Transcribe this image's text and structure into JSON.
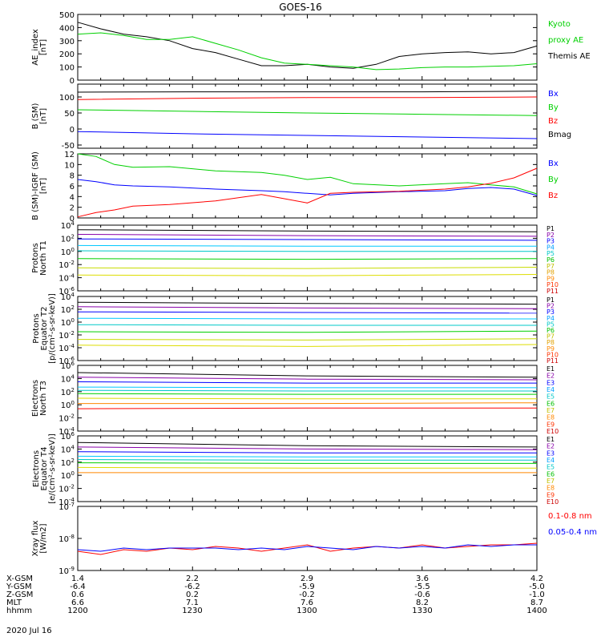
{
  "title": "GOES-16",
  "date": "2020 Jul 16",
  "x_axis": {
    "ticks": [
      "1200",
      "1230",
      "1300",
      "1330",
      "1400"
    ],
    "rows": [
      {
        "label": "X-GSM",
        "values": [
          "1.4",
          "2.2",
          "2.9",
          "3.6",
          "4.2"
        ]
      },
      {
        "label": "Y-GSM",
        "values": [
          "-6.4",
          "-6.2",
          "-5.9",
          "-5.5",
          "-5.0"
        ]
      },
      {
        "label": "Z-GSM",
        "values": [
          "0.6",
          "0.2",
          "-0.2",
          "-0.6",
          "-1.0"
        ]
      },
      {
        "label": "MLT",
        "values": [
          "6.6",
          "7.1",
          "7.6",
          "8.2",
          "8.7"
        ]
      },
      {
        "label": "hhmm",
        "values": [
          "1200",
          "1230",
          "1300",
          "1330",
          "1400"
        ]
      }
    ]
  },
  "colors": {
    "black": "#000000",
    "red": "#ff0000",
    "green": "#00d000",
    "blue": "#0000ff",
    "yellow": "#dddd00",
    "cyan": "#00c8ff",
    "purple": "#8800aa",
    "orange": "#ff8800"
  },
  "chart_data": [
    {
      "type": "line",
      "id": "ae",
      "ylabel": [
        "AE_index",
        "[nT]"
      ],
      "ylim": [
        0,
        500
      ],
      "yscale": "linear",
      "yticks": [
        "0",
        "100",
        "200",
        "300",
        "400",
        "500"
      ],
      "ytick_values": [
        0,
        100,
        200,
        300,
        400,
        500
      ],
      "x": [
        0,
        0.05,
        0.1,
        0.15,
        0.2,
        0.25,
        0.3,
        0.35,
        0.4,
        0.45,
        0.5,
        0.55,
        0.6,
        0.65,
        0.7,
        0.75,
        0.8,
        0.85,
        0.9,
        0.95,
        1.0
      ],
      "series": [
        {
          "name": "Themis AE",
          "color": "#000000",
          "values": [
            440,
            390,
            350,
            330,
            300,
            240,
            210,
            160,
            110,
            110,
            120,
            100,
            90,
            120,
            180,
            200,
            210,
            215,
            200,
            210,
            260
          ]
        },
        {
          "name": "Kyoto proxy AE",
          "color": "#00d000",
          "values": [
            350,
            360,
            340,
            310,
            310,
            330,
            280,
            230,
            170,
            130,
            120,
            110,
            100,
            80,
            85,
            95,
            100,
            100,
            105,
            110,
            125
          ]
        }
      ],
      "legend": [
        {
          "text": "Kyoto",
          "color": "#00d000"
        },
        {
          "text": "proxy AE",
          "color": "#00d000"
        },
        {
          "text": "Themis AE",
          "color": "#000000"
        }
      ]
    },
    {
      "type": "line",
      "id": "b_sm",
      "ylabel": [
        "B (SM)",
        "[nT]"
      ],
      "ylim": [
        -60,
        140
      ],
      "yscale": "linear",
      "yticks": [
        "-50",
        "0",
        "50",
        "100"
      ],
      "ytick_values": [
        -50,
        0,
        50,
        100
      ],
      "x": [
        0,
        0.25,
        0.5,
        0.75,
        1.0
      ],
      "series": [
        {
          "name": "Bmag",
          "color": "#000000",
          "values": [
            115,
            116,
            116,
            116,
            118
          ]
        },
        {
          "name": "Bz",
          "color": "#ff0000",
          "values": [
            92,
            96,
            98,
            98,
            100
          ]
        },
        {
          "name": "By",
          "color": "#00d000",
          "values": [
            60,
            55,
            50,
            46,
            42
          ]
        },
        {
          "name": "Bx",
          "color": "#0000ff",
          "values": [
            -8,
            -15,
            -20,
            -25,
            -30
          ]
        }
      ],
      "legend": [
        {
          "text": "Bx",
          "color": "#0000ff"
        },
        {
          "text": "By",
          "color": "#00d000"
        },
        {
          "text": "Bz",
          "color": "#ff0000"
        },
        {
          "text": "Bmag",
          "color": "#000000"
        }
      ]
    },
    {
      "type": "line",
      "id": "b_igrf",
      "ylabel": [
        "B (SM)-IGRF (SM)",
        "[nT]"
      ],
      "ylim": [
        0,
        12
      ],
      "yscale": "linear",
      "yticks": [
        "0",
        "2",
        "4",
        "6",
        "8",
        "10",
        "12"
      ],
      "ytick_values": [
        0,
        2,
        4,
        6,
        8,
        10,
        12
      ],
      "x": [
        0,
        0.04,
        0.08,
        0.12,
        0.2,
        0.3,
        0.4,
        0.45,
        0.5,
        0.55,
        0.6,
        0.7,
        0.8,
        0.85,
        0.9,
        0.95,
        1.0
      ],
      "series": [
        {
          "name": "By",
          "color": "#00d000",
          "values": [
            12.2,
            11.5,
            10,
            9.5,
            9.6,
            8.8,
            8.5,
            8.0,
            7.2,
            7.6,
            6.4,
            6.0,
            6.4,
            6.6,
            6.2,
            5.8,
            4.5
          ]
        },
        {
          "name": "Bx",
          "color": "#0000ff",
          "values": [
            7.2,
            6.8,
            6.2,
            6.0,
            5.8,
            5.4,
            5.1,
            4.9,
            4.6,
            4.3,
            4.6,
            4.9,
            5.1,
            5.5,
            5.7,
            5.4,
            4.2
          ]
        },
        {
          "name": "Bz",
          "color": "#ff0000",
          "values": [
            0.2,
            1.0,
            1.5,
            2.2,
            2.5,
            3.2,
            4.4,
            3.6,
            2.8,
            4.6,
            4.8,
            5.0,
            5.4,
            5.8,
            6.5,
            7.5,
            9.3
          ]
        }
      ],
      "legend": [
        {
          "text": "Bx",
          "color": "#0000ff"
        },
        {
          "text": "By",
          "color": "#00d000"
        },
        {
          "text": "Bz",
          "color": "#ff0000"
        }
      ]
    },
    {
      "type": "line",
      "id": "protons_t1",
      "ylabel": [
        "Protons",
        "North T1"
      ],
      "ylim": [
        -6,
        4
      ],
      "yscale": "log10",
      "yticks": [
        "10^-6",
        "10^-4",
        "10^-2",
        "10^0",
        "10^2",
        "10^4"
      ],
      "ytick_values": [
        -6,
        -4,
        -2,
        0,
        2,
        4
      ],
      "x": [
        0,
        0.5,
        1.0
      ],
      "series": [
        {
          "name": "P1",
          "color": "#000000",
          "values": [
            3.3,
            3.1,
            3.0
          ]
        },
        {
          "name": "P2",
          "color": "#8800aa",
          "values": [
            2.6,
            2.4,
            2.3
          ]
        },
        {
          "name": "P3",
          "color": "#0000ff",
          "values": [
            1.9,
            1.8,
            1.7
          ]
        },
        {
          "name": "P4",
          "color": "#00c8ff",
          "values": [
            0.9,
            0.8,
            0.8
          ]
        },
        {
          "name": "P5",
          "color": "#00c8c8",
          "values": [
            0.1,
            0.0,
            0.0
          ]
        },
        {
          "name": "P6",
          "color": "#00d000",
          "values": [
            -1.1,
            -1.2,
            -1.1
          ]
        },
        {
          "name": "P7",
          "color": "#c8dc00",
          "values": [
            -2.5,
            -2.6,
            -2.4
          ]
        },
        {
          "name": "P8",
          "color": "#dddd00",
          "values": [
            -3.6,
            -3.7,
            -3.5
          ]
        }
      ],
      "legend": [
        {
          "text": "P1",
          "color": "#000000"
        },
        {
          "text": "P2",
          "color": "#8800aa"
        },
        {
          "text": "P3",
          "color": "#0000ff"
        },
        {
          "text": "P4",
          "color": "#00a0ff"
        },
        {
          "text": "P5",
          "color": "#00c8c8"
        },
        {
          "text": "P6",
          "color": "#00c000"
        },
        {
          "text": "P7",
          "color": "#c0c000"
        },
        {
          "text": "P8",
          "color": "#e0a000"
        },
        {
          "text": "P9",
          "color": "#ff8800"
        },
        {
          "text": "P10",
          "color": "#ff3300"
        },
        {
          "text": "P11",
          "color": "#cc0000"
        }
      ]
    },
    {
      "type": "line",
      "id": "protons_t2",
      "ylabel": [
        "Protons",
        "Equator T2",
        "[p/(cm²-s-sr-keV)]"
      ],
      "ylim": [
        -6,
        4
      ],
      "yscale": "log10",
      "yticks": [
        "10^-6",
        "10^-4",
        "10^-2",
        "10^0",
        "10^2",
        "10^4"
      ],
      "ytick_values": [
        -6,
        -4,
        -2,
        0,
        2,
        4
      ],
      "x": [
        0,
        0.5,
        1.0
      ],
      "series": [
        {
          "name": "P1",
          "color": "#000000",
          "values": [
            3.1,
            2.9,
            2.8
          ]
        },
        {
          "name": "P2",
          "color": "#8800aa",
          "values": [
            2.4,
            2.2,
            2.1
          ]
        },
        {
          "name": "P3",
          "color": "#0000ff",
          "values": [
            1.6,
            1.5,
            1.4
          ]
        },
        {
          "name": "P4",
          "color": "#00c8ff",
          "values": [
            0.6,
            0.5,
            0.5
          ]
        },
        {
          "name": "P5",
          "color": "#00c8c8",
          "values": [
            -0.4,
            -0.5,
            -0.5
          ]
        },
        {
          "name": "P6",
          "color": "#00d000",
          "values": [
            -1.5,
            -1.6,
            -1.4
          ]
        },
        {
          "name": "P7",
          "color": "#c8dc00",
          "values": [
            -2.7,
            -2.8,
            -2.6
          ]
        },
        {
          "name": "P8",
          "color": "#dddd00",
          "values": [
            -3.6,
            -3.8,
            -3.5
          ]
        }
      ],
      "legend": [
        {
          "text": "P1",
          "color": "#000000"
        },
        {
          "text": "P2",
          "color": "#8800aa"
        },
        {
          "text": "P3",
          "color": "#0000ff"
        },
        {
          "text": "P4",
          "color": "#00a0ff"
        },
        {
          "text": "P5",
          "color": "#00c8c8"
        },
        {
          "text": "P6",
          "color": "#00c000"
        },
        {
          "text": "P7",
          "color": "#c0c000"
        },
        {
          "text": "P8",
          "color": "#e0a000"
        },
        {
          "text": "P9",
          "color": "#ff8800"
        },
        {
          "text": "P10",
          "color": "#ff3300"
        },
        {
          "text": "P11",
          "color": "#cc0000"
        }
      ]
    },
    {
      "type": "line",
      "id": "electrons_t3",
      "ylabel": [
        "Electrons",
        "North T3"
      ],
      "ylim": [
        -4,
        6
      ],
      "yscale": "log10",
      "yticks": [
        "10^-4",
        "10^-2",
        "10^0",
        "10^2",
        "10^4",
        "10^6"
      ],
      "ytick_values": [
        -4,
        -2,
        0,
        2,
        4,
        6
      ],
      "x": [
        0,
        0.5,
        1.0
      ],
      "series": [
        {
          "name": "E1",
          "color": "#000000",
          "values": [
            4.9,
            4.4,
            4.2
          ]
        },
        {
          "name": "E2",
          "color": "#8800aa",
          "values": [
            4.2,
            3.9,
            3.8
          ]
        },
        {
          "name": "E3",
          "color": "#0000ff",
          "values": [
            3.5,
            3.3,
            3.3
          ]
        },
        {
          "name": "E4",
          "color": "#00c8ff",
          "values": [
            2.7,
            2.6,
            2.6
          ]
        },
        {
          "name": "E5",
          "color": "#00c8c8",
          "values": [
            2.2,
            2.1,
            2.1
          ]
        },
        {
          "name": "E6",
          "color": "#00d000",
          "values": [
            1.7,
            1.6,
            1.6
          ]
        },
        {
          "name": "E7",
          "color": "#dddd00",
          "values": [
            1.0,
            0.9,
            0.9
          ]
        },
        {
          "name": "E8",
          "color": "#ff8800",
          "values": [
            0.2,
            0.2,
            0.3
          ]
        },
        {
          "name": "E9",
          "color": "#ff0000",
          "values": [
            -0.6,
            -0.5,
            -0.5
          ]
        }
      ],
      "legend": [
        {
          "text": "E1",
          "color": "#000000"
        },
        {
          "text": "E2",
          "color": "#8800aa"
        },
        {
          "text": "E3",
          "color": "#0000ff"
        },
        {
          "text": "E4",
          "color": "#00a0ff"
        },
        {
          "text": "E5",
          "color": "#00c8c8"
        },
        {
          "text": "E6",
          "color": "#00c000"
        },
        {
          "text": "E7",
          "color": "#c0c000"
        },
        {
          "text": "E8",
          "color": "#ff8800"
        },
        {
          "text": "E9",
          "color": "#ff3300"
        },
        {
          "text": "E10",
          "color": "#cc0000"
        }
      ]
    },
    {
      "type": "line",
      "id": "electrons_t4",
      "ylabel": [
        "Electrons",
        "Equator T4",
        "[e/(cm²-s-sr-keV)]"
      ],
      "ylim": [
        -4,
        6
      ],
      "yscale": "log10",
      "yticks": [
        "10^-4",
        "10^-2",
        "10^0",
        "10^2",
        "10^4",
        "10^6"
      ],
      "ytick_values": [
        -4,
        -2,
        0,
        2,
        4,
        6
      ],
      "x": [
        0,
        0.5,
        1.0
      ],
      "series": [
        {
          "name": "E1",
          "color": "#000000",
          "values": [
            5.0,
            4.5,
            4.3
          ]
        },
        {
          "name": "E2",
          "color": "#8800aa",
          "values": [
            4.3,
            4.0,
            3.9
          ]
        },
        {
          "name": "E3",
          "color": "#0000ff",
          "values": [
            3.6,
            3.4,
            3.4
          ]
        },
        {
          "name": "E4",
          "color": "#00c8ff",
          "values": [
            2.9,
            2.8,
            2.8
          ]
        },
        {
          "name": "E5",
          "color": "#00c8c8",
          "values": [
            2.4,
            2.3,
            2.3
          ]
        },
        {
          "name": "E6",
          "color": "#00d000",
          "values": [
            1.9,
            1.8,
            1.8
          ]
        },
        {
          "name": "E7",
          "color": "#dddd00",
          "values": [
            1.2,
            1.1,
            1.1
          ]
        },
        {
          "name": "E8",
          "color": "#ff8800",
          "values": [
            0.4,
            0.4,
            0.4
          ]
        }
      ],
      "legend": [
        {
          "text": "E1",
          "color": "#000000"
        },
        {
          "text": "E2",
          "color": "#8800aa"
        },
        {
          "text": "E3",
          "color": "#0000ff"
        },
        {
          "text": "E4",
          "color": "#00a0ff"
        },
        {
          "text": "E5",
          "color": "#00c8c8"
        },
        {
          "text": "E6",
          "color": "#00c000"
        },
        {
          "text": "E7",
          "color": "#c0c000"
        },
        {
          "text": "E8",
          "color": "#ff8800"
        },
        {
          "text": "E9",
          "color": "#ff3300"
        },
        {
          "text": "E10",
          "color": "#cc0000"
        }
      ]
    },
    {
      "type": "line",
      "id": "xray",
      "ylabel": [
        "Xray flux",
        "[W/m2]"
      ],
      "ylim": [
        -9,
        -7
      ],
      "yscale": "log10",
      "yticks": [
        "10^-9",
        "10^-8",
        "10^-7"
      ],
      "ytick_values": [
        -9,
        -8,
        -7
      ],
      "x": [
        0,
        0.05,
        0.1,
        0.15,
        0.2,
        0.25,
        0.3,
        0.35,
        0.4,
        0.45,
        0.5,
        0.55,
        0.6,
        0.65,
        0.7,
        0.75,
        0.8,
        0.85,
        0.9,
        0.95,
        1.0
      ],
      "series": [
        {
          "name": "0.1-0.8 nm",
          "color": "#ff0000",
          "values": [
            -8.4,
            -8.5,
            -8.35,
            -8.4,
            -8.3,
            -8.35,
            -8.25,
            -8.3,
            -8.4,
            -8.3,
            -8.2,
            -8.4,
            -8.3,
            -8.25,
            -8.3,
            -8.2,
            -8.3,
            -8.25,
            -8.2,
            -8.2,
            -8.15
          ]
        },
        {
          "name": "0.05-0.4 nm",
          "color": "#0000ff",
          "values": [
            -8.35,
            -8.4,
            -8.3,
            -8.35,
            -8.3,
            -8.3,
            -8.3,
            -8.35,
            -8.3,
            -8.35,
            -8.25,
            -8.3,
            -8.35,
            -8.25,
            -8.3,
            -8.25,
            -8.3,
            -8.2,
            -8.25,
            -8.2,
            -8.2
          ]
        }
      ],
      "legend": [
        {
          "text": "0.1-0.8 nm",
          "color": "#ff0000"
        },
        {
          "text": "0.05-0.4 nm",
          "color": "#0000ff"
        }
      ]
    }
  ]
}
